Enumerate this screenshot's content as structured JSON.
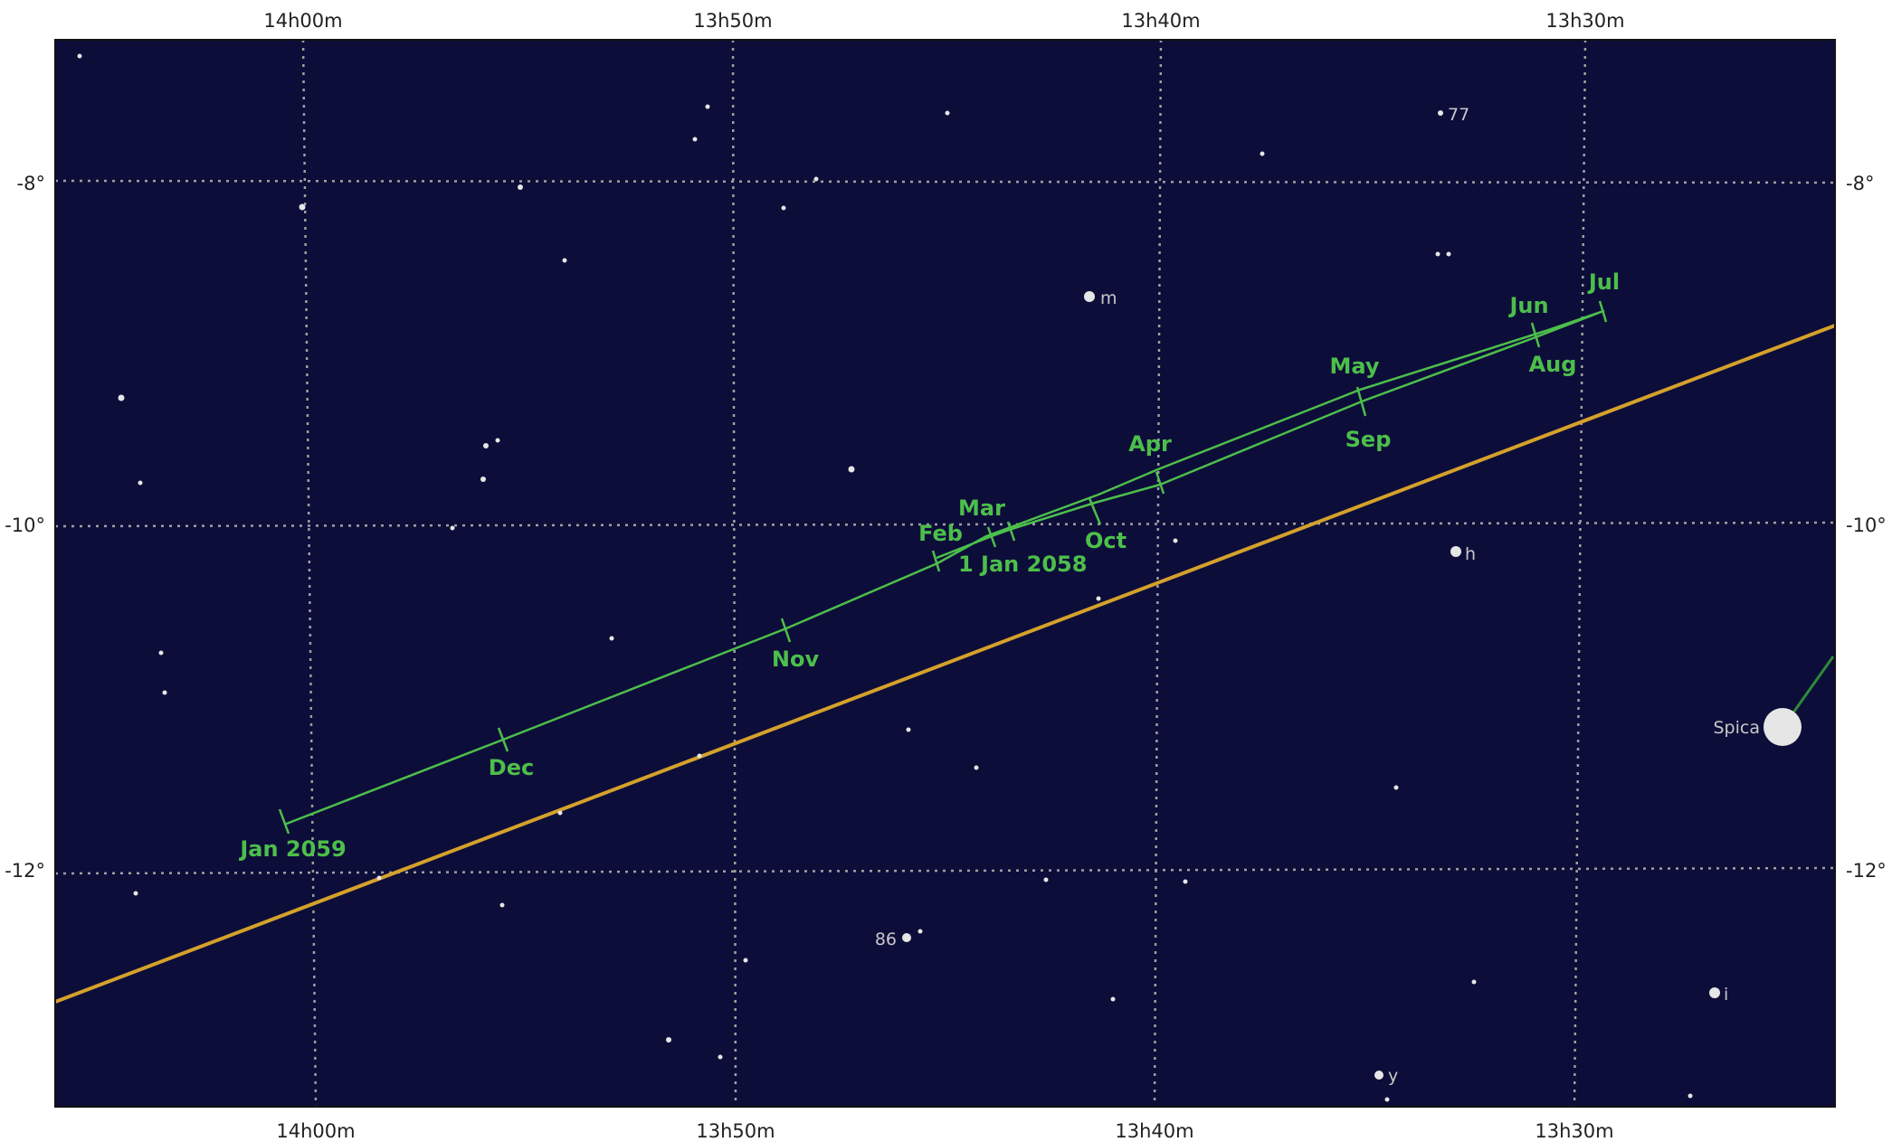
{
  "chart_data": {
    "type": "scatter",
    "colors": {
      "sky": "#0d0d3a",
      "grid": "#a0a0a0",
      "ecliptic": "#d4a12a",
      "track": "#4cbf4a",
      "spica_pointer": "#2e8a3a",
      "star": "#e6e6e6",
      "star_label": "#c8c8c8"
    },
    "ra_ticks_top": [
      "14h00m",
      "13h50m",
      "13h40m",
      "13h30m"
    ],
    "ra_ticks_bottom": [
      "14h00m",
      "13h50m",
      "13h40m",
      "13h30m"
    ],
    "dec_ticks": [
      "-8°",
      "-10°",
      "-12°"
    ],
    "track_months": [
      {
        "label": "1 Jan 2058"
      },
      {
        "label": "Feb"
      },
      {
        "label": "Mar"
      },
      {
        "label": "Apr"
      },
      {
        "label": "May"
      },
      {
        "label": "Jun"
      },
      {
        "label": "Jul"
      },
      {
        "label": "Aug"
      },
      {
        "label": "Sep"
      },
      {
        "label": "Oct"
      },
      {
        "label": "Nov"
      },
      {
        "label": "Dec"
      },
      {
        "label": "Jan 2059"
      }
    ],
    "named_stars": [
      {
        "label": "77"
      },
      {
        "label": "m"
      },
      {
        "label": "h"
      },
      {
        "label": "Spica"
      },
      {
        "label": "86"
      },
      {
        "label": "i"
      },
      {
        "label": "y"
      }
    ]
  }
}
